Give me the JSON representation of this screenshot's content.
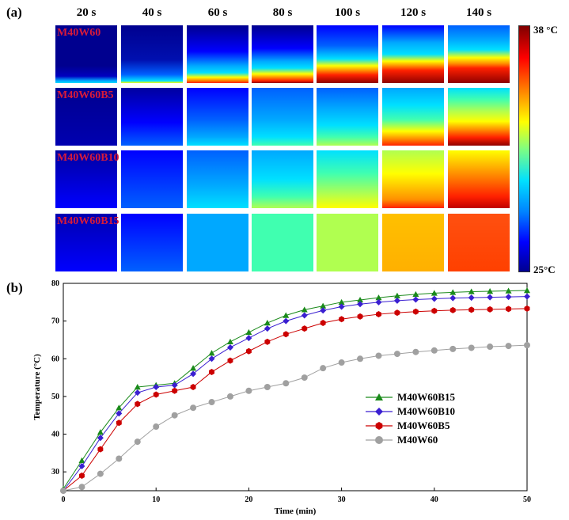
{
  "panel_a": {
    "label": "(a)",
    "times": [
      "20 s",
      "40 s",
      "60 s",
      "80 s",
      "100 s",
      "120 s",
      "140 s"
    ],
    "rows": [
      "M40W60",
      "M40W60B5",
      "M40W60B10",
      "M40W60B15"
    ],
    "colorbar": {
      "max_label": "38 °C",
      "min_label": "25°C"
    },
    "colors": {
      "row_label": "#d81b3a"
    }
  },
  "panel_b": {
    "label": "(b)"
  },
  "chart_data": {
    "type": "line",
    "xlabel": "Time (min)",
    "ylabel": "Temperature (°C)",
    "xlim": [
      0,
      50
    ],
    "ylim": [
      25,
      80
    ],
    "xticks": [
      0,
      10,
      20,
      30,
      40,
      50
    ],
    "yticks": [
      30,
      40,
      50,
      60,
      70,
      80
    ],
    "legend_position": "right",
    "x": [
      0,
      2,
      4,
      6,
      8,
      10,
      12,
      14,
      16,
      18,
      20,
      22,
      24,
      26,
      28,
      30,
      32,
      34,
      36,
      38,
      40,
      42,
      44,
      46,
      48,
      50
    ],
    "series": [
      {
        "name": "M40W60B15",
        "color": "#1a8a1a",
        "marker": "triangle",
        "values": [
          25.5,
          33,
          40.5,
          47,
          52.5,
          53,
          53.5,
          57.5,
          61.5,
          64.5,
          67,
          69.5,
          71.5,
          73,
          74,
          75,
          75.6,
          76.2,
          76.7,
          77.1,
          77.4,
          77.6,
          77.8,
          77.9,
          78,
          78.1
        ]
      },
      {
        "name": "M40W60B10",
        "color": "#3a1fd1",
        "marker": "diamond",
        "values": [
          25,
          31.5,
          39,
          45.5,
          51,
          52.5,
          53,
          56,
          60,
          63,
          65.5,
          68,
          70,
          71.5,
          72.8,
          73.8,
          74.5,
          75,
          75.4,
          75.7,
          75.9,
          76.1,
          76.2,
          76.3,
          76.4,
          76.5
        ]
      },
      {
        "name": "M40W60B5",
        "color": "#cc0000",
        "marker": "hexagon",
        "values": [
          25,
          29,
          36,
          43,
          48,
          50.5,
          51.5,
          52.5,
          56.5,
          59.5,
          62,
          64.5,
          66.5,
          68,
          69.5,
          70.5,
          71.2,
          71.8,
          72.2,
          72.5,
          72.7,
          72.9,
          73,
          73.1,
          73.2,
          73.3
        ]
      },
      {
        "name": "M40W60",
        "color": "#a0a0a0",
        "marker": "circle",
        "values": [
          25,
          26,
          29.5,
          33.5,
          38,
          42,
          45,
          47,
          48.5,
          50,
          51.5,
          52.5,
          53.5,
          55,
          57.5,
          59,
          60,
          60.8,
          61.3,
          61.8,
          62.2,
          62.6,
          62.9,
          63.2,
          63.4,
          63.6
        ]
      }
    ]
  }
}
